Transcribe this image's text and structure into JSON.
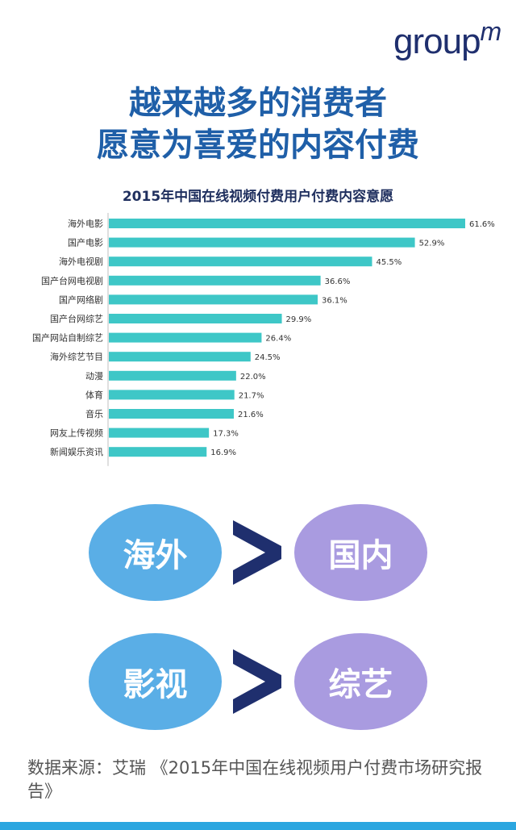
{
  "brand": {
    "logo_text": "group",
    "logo_sup": "m"
  },
  "headline": {
    "line1": "越来越多的消费者",
    "line2": "愿意为喜爱的内容付费"
  },
  "chart_data": {
    "type": "bar",
    "orientation": "horizontal",
    "title": "2015年中国在线视频付费用户付费内容意愿",
    "categories": [
      "海外电影",
      "国产电影",
      "海外电视剧",
      "国产台网电视剧",
      "国产网络剧",
      "国产台网综艺",
      "国产网站自制综艺",
      "海外综艺节目",
      "动漫",
      "体育",
      "音乐",
      "网友上传视频",
      "新闻娱乐资讯"
    ],
    "values": [
      61.6,
      52.9,
      45.5,
      36.6,
      36.1,
      29.9,
      26.4,
      24.5,
      22.0,
      21.7,
      21.6,
      17.3,
      16.9
    ],
    "value_labels": [
      "61.6%",
      "52.9%",
      "45.5%",
      "36.6%",
      "36.1%",
      "29.9%",
      "26.4%",
      "24.5%",
      "22.0%",
      "21.7%",
      "21.6%",
      "17.3%",
      "16.9%"
    ],
    "unit": "%",
    "xlim": [
      0,
      61.6
    ],
    "bar_color": "#3ec7c7",
    "grid": false,
    "legend": "none"
  },
  "comparisons": [
    {
      "left": "海外",
      "symbol": ">",
      "right": "国内"
    },
    {
      "left": "影视",
      "symbol": ">",
      "right": "综艺"
    }
  ],
  "colors": {
    "headline": "#1f5fa8",
    "bubble_left": "#5aaee6",
    "bubble_right": "#a99be0",
    "symbol": "#1f2f6e",
    "bottom_bar": "#2ba6e0"
  },
  "source": "数据来源：艾瑞 《2015年中国在线视频用户付费市场研究报告》"
}
